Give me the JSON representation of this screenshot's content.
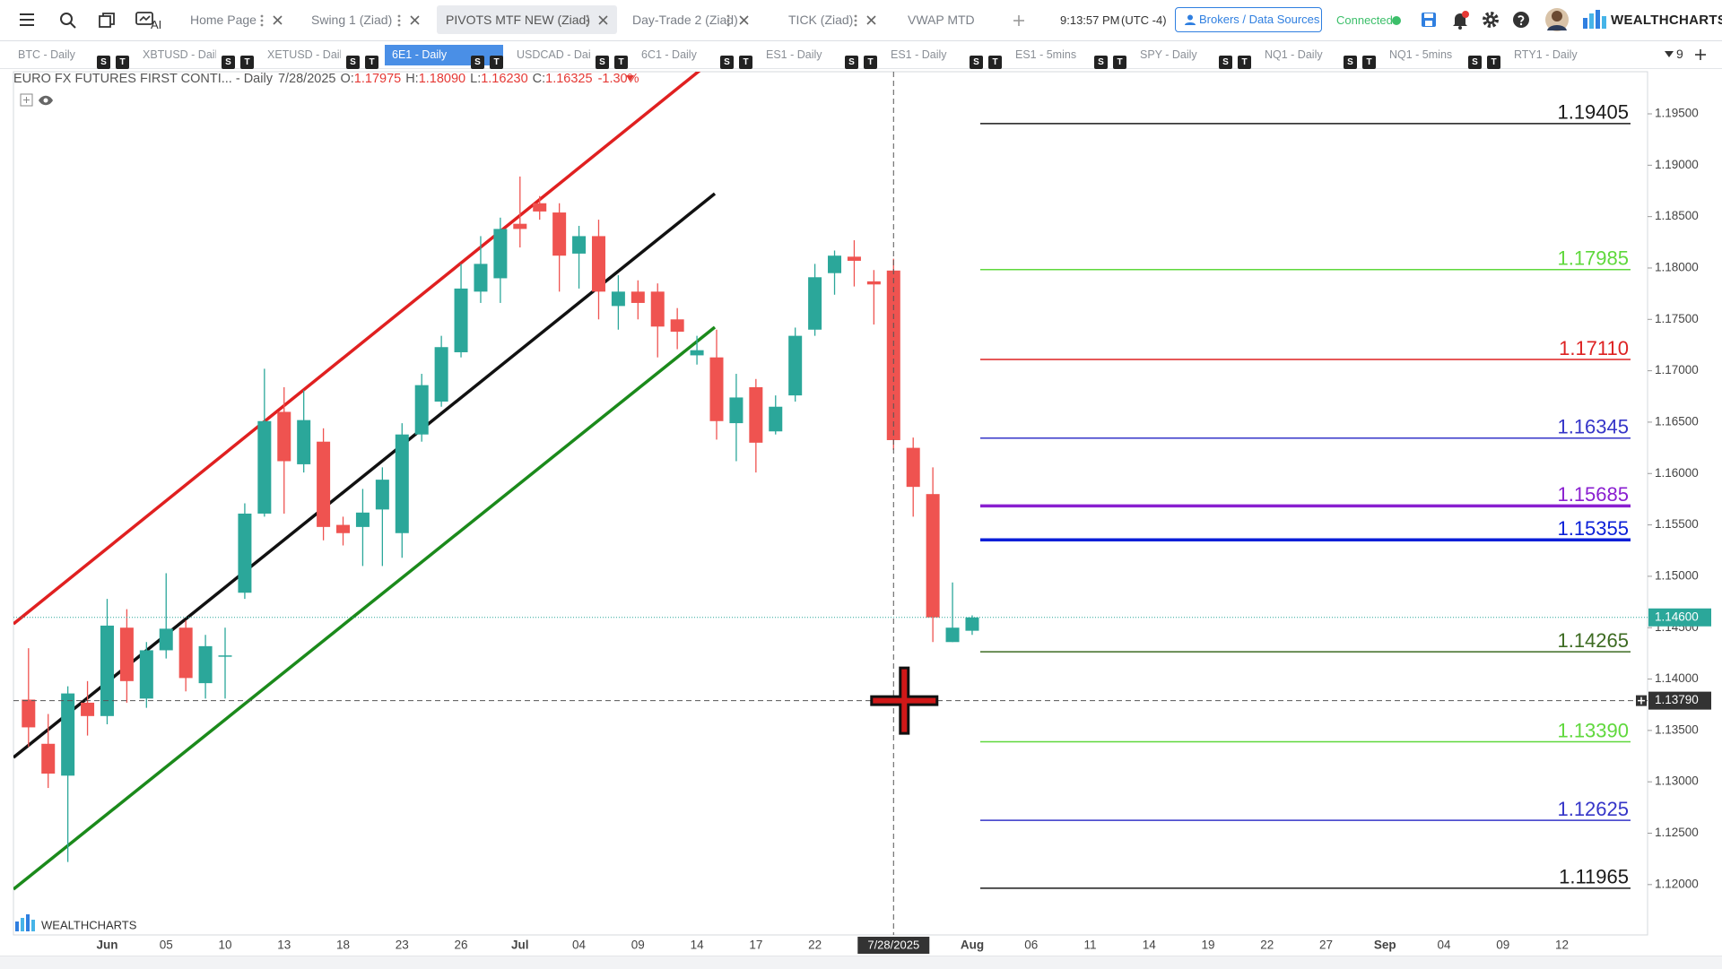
{
  "toolbar": {
    "ai": "AI",
    "tabs": [
      "Home Page",
      "Swing 1 (Ziad)",
      "PIVOTS MTF NEW (Ziad)",
      "Day-Trade 2 (Ziad)",
      "TICK (Ziad)",
      "VWAP MTD MAG"
    ],
    "active_tab": 2,
    "time": "9:13:57 PM",
    "timezone": "(UTC -4)",
    "brokers": "Brokers / Data Sources",
    "status": "Connected",
    "brand": "WEALTHCHARTS"
  },
  "symbol_tabs": {
    "tabs": [
      "BTC - Daily",
      "XBTUSD - Daily",
      "XETUSD - Daily",
      "6E1 - Daily",
      "USDCAD - Daily",
      "6C1 - Daily",
      "ES1 - Daily",
      "ES1 - Daily",
      "ES1 - 5mins",
      "SPY - Daily",
      "NQ1 - Daily",
      "NQ1 - 5mins",
      "RTY1 - Daily"
    ],
    "active": 3,
    "badges": [
      "S",
      "T"
    ],
    "count": "9"
  },
  "watermark": "WEALTHCHARTS",
  "chart_data": {
    "type": "candlestick",
    "header": {
      "title": "EURO FX FUTURES FIRST CONTI... - Daily",
      "date": "7/28/2025",
      "open_label": "O:",
      "open": 1.17975,
      "high_label": "H:",
      "high": {
        "value": 1.1809,
        "label": "1.18090"
      },
      "low_label": "L:",
      "low": {
        "value": 1.1623,
        "label": "1.16230"
      },
      "close_label": "C:",
      "close": 1.16325,
      "change": {
        "value": -1.3,
        "label": "-1.30%"
      }
    },
    "categories": [
      null,
      null,
      null,
      null,
      "Jun",
      null,
      null,
      "05",
      null,
      null,
      "10",
      null,
      null,
      "13",
      null,
      null,
      "18",
      null,
      null,
      "23",
      null,
      null,
      "26",
      null,
      null,
      "Jul",
      null,
      null,
      "04",
      null,
      null,
      "09",
      null,
      null,
      "14",
      null,
      null,
      "17",
      null,
      null,
      "22",
      null,
      null,
      null,
      "7/28/2025",
      null,
      null,
      null,
      "Aug",
      null,
      null,
      "06",
      null,
      null,
      "11",
      null,
      null,
      "14",
      null,
      null,
      "19",
      null,
      null,
      "22",
      null,
      null,
      "27",
      null,
      null,
      "Sep",
      null,
      null,
      "04",
      null,
      null,
      "09",
      null,
      null,
      "12",
      null,
      null,
      null,
      null
    ],
    "series": {
      "open": [
        1.138,
        1.1337,
        1.1306,
        1.1377,
        1.1364,
        1.145,
        1.1381,
        1.1428,
        1.145,
        1.1396,
        1.1422,
        1.1484,
        1.1561,
        1.166,
        1.1609,
        1.1631,
        1.155,
        1.1548,
        1.1565,
        1.1542,
        1.1638,
        1.167,
        1.1718,
        1.1777,
        1.179,
        1.1843,
        1.1863,
        1.1854,
        1.1814,
        1.1831,
        1.1763,
        1.1777,
        1.1777,
        1.175,
        1.1715,
        1.1713,
        1.1649,
        1.1684,
        1.1641,
        1.1676,
        1.174,
        1.1795,
        1.1811,
        1.1787,
        1.17975,
        1.1625,
        1.158,
        1.1436,
        1.1447,
        null,
        null,
        null,
        null,
        null,
        null,
        null,
        null,
        null,
        null,
        null,
        null,
        null,
        null,
        null,
        null,
        null,
        null,
        null,
        null,
        null,
        null,
        null,
        null,
        null,
        null,
        null,
        null,
        null,
        null,
        null,
        null,
        null,
        null
      ],
      "high": [
        1.143,
        1.1366,
        1.1393,
        1.1398,
        1.1478,
        1.1468,
        1.1436,
        1.1503,
        1.1457,
        1.1443,
        1.145,
        1.1571,
        1.1702,
        1.1684,
        1.1681,
        1.1644,
        1.1558,
        1.1585,
        1.1606,
        1.1649,
        1.1697,
        1.1734,
        1.1804,
        1.1831,
        1.1849,
        1.1889,
        1.187,
        1.1863,
        1.1841,
        1.1847,
        1.1793,
        1.1788,
        1.1785,
        1.1761,
        1.1734,
        1.174,
        1.1697,
        1.1692,
        1.1676,
        1.1742,
        1.1804,
        1.1817,
        1.1827,
        1.1798,
        1.1809,
        1.1635,
        1.1606,
        1.1494,
        1.1462,
        null,
        null,
        null,
        null,
        null,
        null,
        null,
        null,
        null,
        null,
        null,
        null,
        null,
        null,
        null,
        null,
        null,
        null,
        null,
        null,
        null,
        null,
        null,
        null,
        null,
        null,
        null,
        null,
        null,
        null,
        null,
        null,
        null,
        null
      ],
      "low": [
        1.1334,
        1.1294,
        1.1222,
        1.1345,
        1.1356,
        1.1377,
        1.1372,
        1.142,
        1.1388,
        1.1381,
        1.1381,
        1.1478,
        1.1558,
        1.1561,
        1.1601,
        1.1535,
        1.153,
        1.151,
        1.151,
        1.1518,
        1.1631,
        1.1665,
        1.1713,
        1.1766,
        1.1766,
        1.182,
        1.1847,
        1.1777,
        1.178,
        1.175,
        1.174,
        1.175,
        1.1713,
        1.1721,
        1.1706,
        1.1633,
        1.1612,
        1.1601,
        1.1638,
        1.167,
        1.1734,
        1.1774,
        1.1782,
        1.1745,
        1.1623,
        1.1558,
        1.1436,
        1.1436,
        1.1443,
        null,
        null,
        null,
        null,
        null,
        null,
        null,
        null,
        null,
        null,
        null,
        null,
        null,
        null,
        null,
        null,
        null,
        null,
        null,
        null,
        null,
        null,
        null,
        null,
        null,
        null,
        null,
        null,
        null,
        null,
        null,
        null,
        null,
        null
      ],
      "close": [
        1.1353,
        1.1308,
        1.1386,
        1.1364,
        1.1452,
        1.1398,
        1.1428,
        1.1449,
        1.1401,
        1.1432,
        1.1423,
        1.1561,
        1.1651,
        1.1612,
        1.1652,
        1.1548,
        1.1542,
        1.1562,
        1.1594,
        1.1638,
        1.1686,
        1.1723,
        1.178,
        1.1804,
        1.1838,
        1.1838,
        1.1855,
        1.1812,
        1.1831,
        1.1777,
        1.1777,
        1.1766,
        1.1743,
        1.1738,
        1.172,
        1.1651,
        1.1674,
        1.163,
        1.1665,
        1.1734,
        1.1791,
        1.1812,
        1.1807,
        1.1784,
        1.16325,
        1.1587,
        1.146,
        1.145,
        1.146,
        null,
        null,
        null,
        null,
        null,
        null,
        null,
        null,
        null,
        null,
        null,
        null,
        null,
        null,
        null,
        null,
        null,
        null,
        null,
        null,
        null,
        null,
        null,
        null,
        null,
        null,
        null,
        null,
        null,
        null,
        null,
        null,
        null,
        null
      ]
    },
    "up_color": "#2ba79a",
    "down_color": "#ef5350",
    "ylim": [
      1.1151,
      1.1991
    ],
    "yticks": [
      {
        "value": 1.12,
        "label": "1.12000"
      },
      {
        "value": 1.125,
        "label": "1.12500"
      },
      {
        "value": 1.13,
        "label": "1.13000"
      },
      {
        "value": 1.135,
        "label": "1.13500"
      },
      {
        "value": 1.14,
        "label": "1.14000"
      },
      {
        "value": 1.145,
        "label": "1.14500"
      },
      {
        "value": 1.15,
        "label": "1.15000"
      },
      {
        "value": 1.155,
        "label": "1.15500"
      },
      {
        "value": 1.16,
        "label": "1.16000"
      },
      {
        "value": 1.165,
        "label": "1.16500"
      },
      {
        "value": 1.17,
        "label": "1.17000"
      },
      {
        "value": 1.175,
        "label": "1.17500"
      },
      {
        "value": 1.18,
        "label": "1.18000"
      },
      {
        "value": 1.185,
        "label": "1.18500"
      },
      {
        "value": 1.19,
        "label": "1.19000"
      },
      {
        "value": 1.195,
        "label": "1.19500"
      }
    ],
    "grid": false,
    "pivots": [
      {
        "value": 1.19405,
        "color": "#1a1a1a",
        "width": 1.5
      },
      {
        "value": 1.17985,
        "color": "#5fd83c",
        "width": 1.5
      },
      {
        "value": 1.1711,
        "label": "1.17110",
        "color": "#dd2222",
        "width": 1.5
      },
      {
        "value": 1.16345,
        "color": "#3535c8",
        "width": 1.5
      },
      {
        "value": 1.15685,
        "color": "#8a1fd0",
        "width": 3.5
      },
      {
        "value": 1.15355,
        "color": "#0a1fd8",
        "width": 3.5
      },
      {
        "value": 1.14265,
        "color": "#3d6b22",
        "width": 1.5
      },
      {
        "value": 1.1339,
        "label": "1.13390",
        "color": "#5fd83c",
        "width": 1.5
      },
      {
        "value": 1.12625,
        "color": "#3535c8",
        "width": 1.5
      },
      {
        "value": 1.11965,
        "color": "#1a1a1a",
        "width": 1.5
      }
    ],
    "last_price": {
      "value": 1.146,
      "label": "1.14600"
    },
    "crosshair": {
      "value": 1.1379,
      "label": "1.13790"
    }
  }
}
